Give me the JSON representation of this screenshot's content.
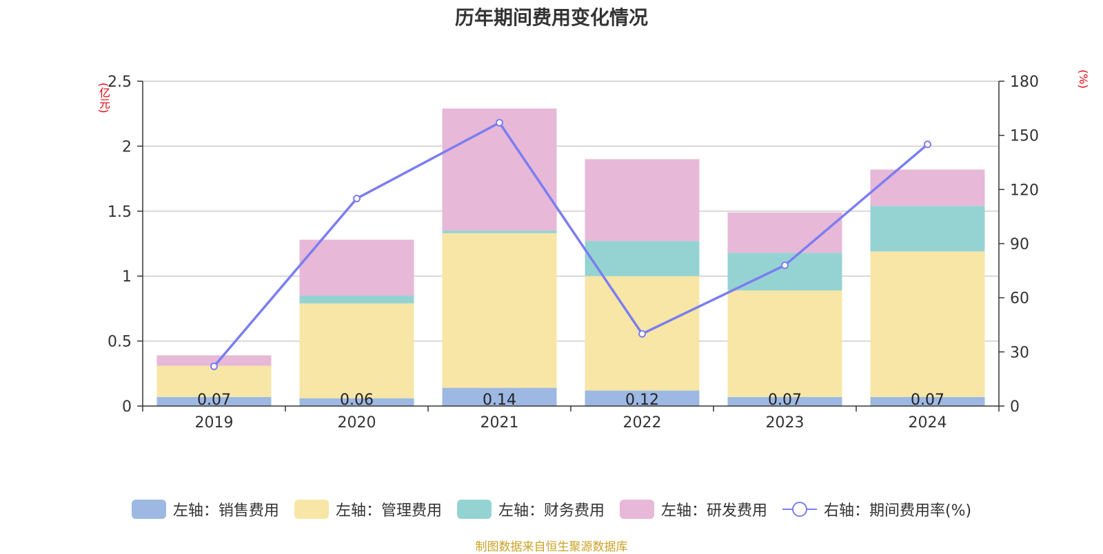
{
  "title": "历年期间费用变化情况",
  "left_unit": "(亿元)",
  "right_unit": "(%)",
  "footer": "制图数据来自恒生聚源数据库",
  "colors": {
    "sales": "#9db8e3",
    "admin": "#f7e6a6",
    "finance": "#95d3d3",
    "rd": "#e7b8d8",
    "rate": "#7b7df0"
  },
  "legend": {
    "sales": "左轴：销售费用",
    "admin": "左轴：管理费用",
    "finance": "左轴：财务费用",
    "rd": "左轴：研发费用",
    "rate": "右轴：期间费用率(%)"
  },
  "chart_data": {
    "type": "bar",
    "stacked": true,
    "categories": [
      "2019",
      "2020",
      "2021",
      "2022",
      "2023",
      "2024"
    ],
    "series": [
      {
        "name": "左轴：销售费用",
        "axis": "left",
        "values": [
          0.07,
          0.06,
          0.14,
          0.12,
          0.07,
          0.07
        ],
        "labels": [
          "0.07",
          "0.06",
          "0.14",
          "0.12",
          "0.07",
          "0.07"
        ]
      },
      {
        "name": "左轴：管理费用",
        "axis": "left",
        "values": [
          0.24,
          0.73,
          1.19,
          0.88,
          0.82,
          1.12
        ]
      },
      {
        "name": "左轴：财务费用",
        "axis": "left",
        "values": [
          0.0,
          0.06,
          0.02,
          0.27,
          0.29,
          0.35
        ]
      },
      {
        "name": "左轴：研发费用",
        "axis": "left",
        "values": [
          0.08,
          0.43,
          0.94,
          0.63,
          0.31,
          0.28
        ]
      },
      {
        "name": "右轴：期间费用率(%)",
        "axis": "right",
        "type": "line",
        "values": [
          22,
          115,
          157,
          40,
          78,
          145
        ]
      }
    ],
    "left_axis": {
      "min": 0,
      "max": 2.5,
      "ticks": [
        "0",
        "0.5",
        "1",
        "1.5",
        "2",
        "2.5"
      ]
    },
    "right_axis": {
      "min": 0,
      "max": 180,
      "ticks": [
        "0",
        "30",
        "60",
        "90",
        "120",
        "150",
        "180"
      ]
    },
    "grid": true,
    "legend_position": "bottom"
  }
}
